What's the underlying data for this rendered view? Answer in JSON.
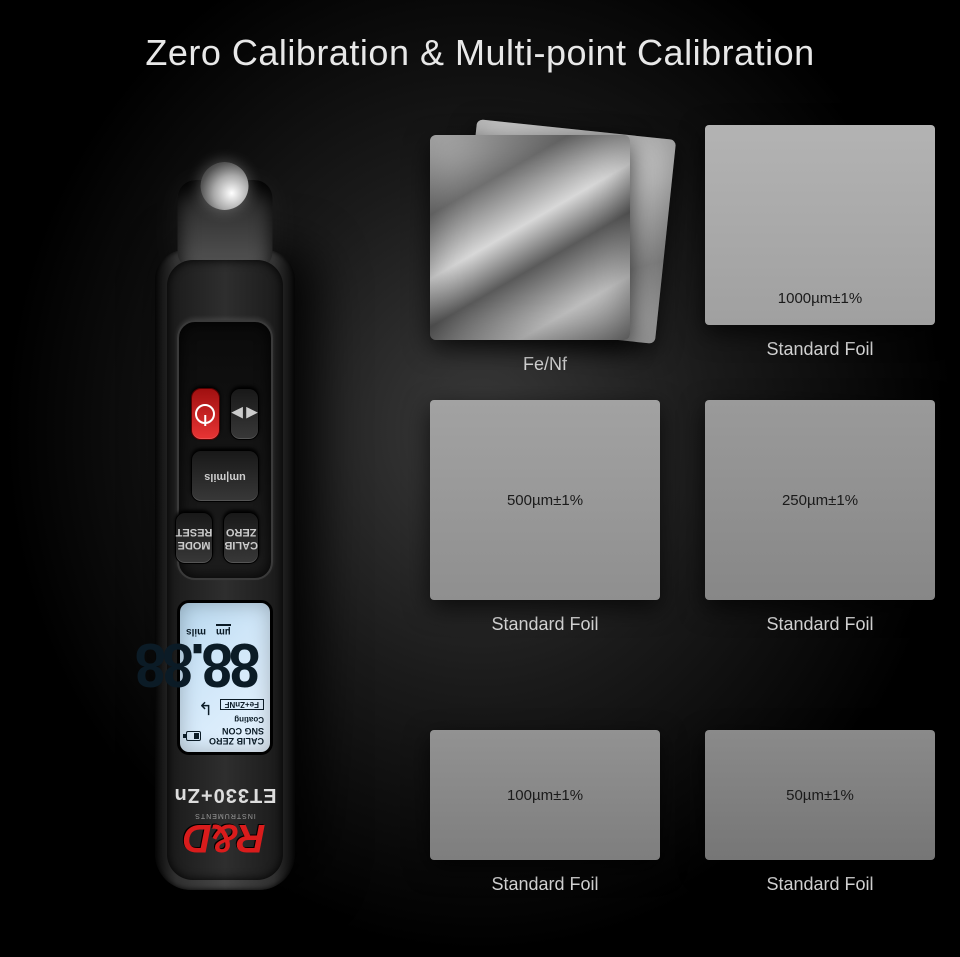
{
  "heading": "Zero Calibration & Multi-point Calibration",
  "device": {
    "brand": "R&D",
    "brand_sub": "INSTRUMENTS",
    "model": "ET330+Zn",
    "lcd": {
      "indicators": "CALIB ZERO SNG CON",
      "coating_label": "Coating",
      "substrate": "Fe+ZnNF",
      "digits": "88.88",
      "unit_um": "µm",
      "unit_mils": "mils"
    },
    "buttons": {
      "calib_l1": "CALIB",
      "calib_l2": "ZERO",
      "mode_l1": "MODE",
      "mode_l2": "RESET",
      "units": "um|mils"
    }
  },
  "foils": [
    {
      "type": "metal",
      "caption": "Fe/Nf"
    },
    {
      "type": "foil",
      "height": "tall",
      "label": "1000µm±1%",
      "label_pos": "bottom",
      "bg": "linear-gradient(#b3b3b3,#a0a0a0)",
      "caption": "Standard Foil"
    },
    {
      "type": "foil",
      "height": "tall",
      "label": "500µm±1%",
      "label_pos": "center",
      "bg": "linear-gradient(#a2a2a2,#8f8f8f)",
      "caption": "Standard Foil"
    },
    {
      "type": "foil",
      "height": "tall",
      "label": "250µm±1%",
      "label_pos": "center",
      "bg": "linear-gradient(#9a9a9a,#878787)",
      "caption": "Standard Foil"
    },
    {
      "type": "foil",
      "height": "short",
      "label": "100µm±1%",
      "label_pos": "center",
      "bg": "linear-gradient(#929292,#7e7e7e)",
      "caption": "Standard Foil"
    },
    {
      "type": "foil",
      "height": "short",
      "label": "50µm±1%",
      "label_pos": "center",
      "bg": "linear-gradient(#8a8a8a,#767676)",
      "caption": "Standard Foil"
    }
  ]
}
